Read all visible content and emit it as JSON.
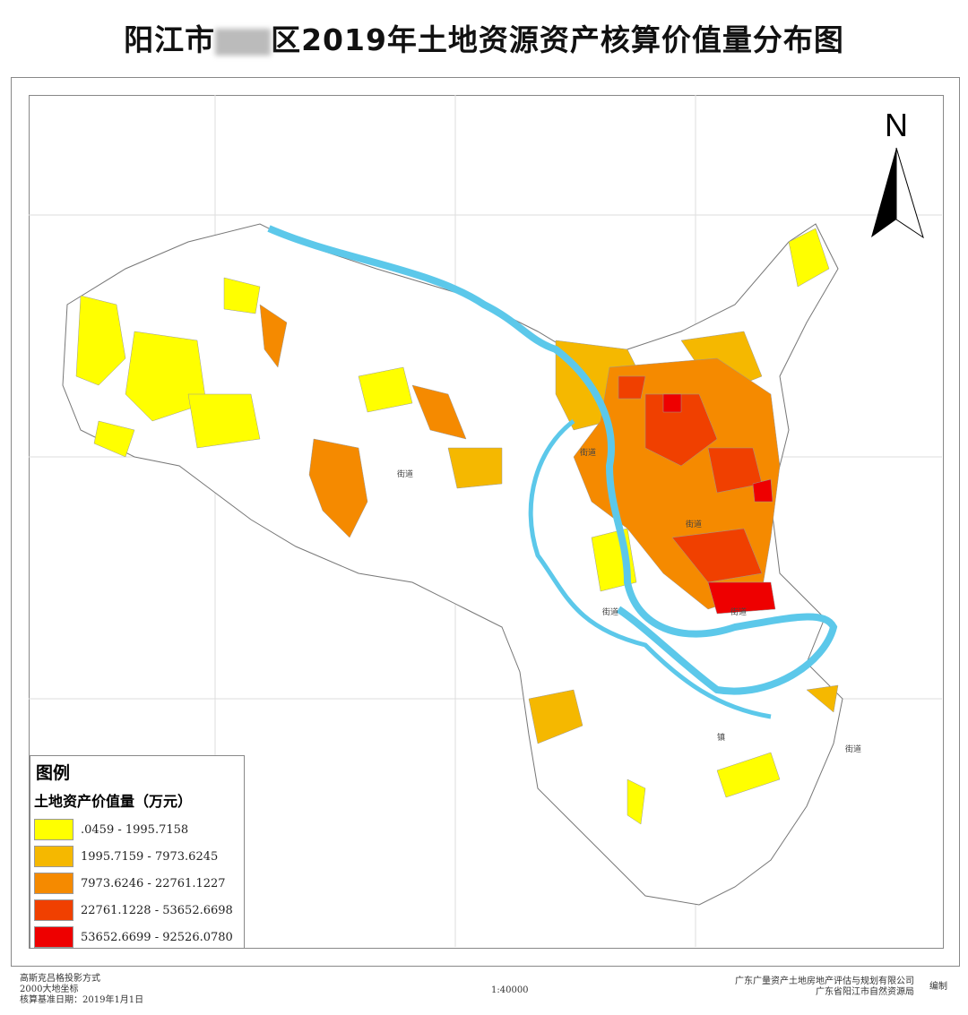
{
  "title": {
    "prefix": "阳江市",
    "suffix": "区2019年土地资源资产核算价值量分布图"
  },
  "north": "N",
  "legend": {
    "title": "图例",
    "subtitle": "土地资产价值量（万元）",
    "items": [
      {
        "label": ".0459 - 1995.7158",
        "color": "#ffff00"
      },
      {
        "label": "1995.7159 - 7973.6245",
        "color": "#f5b800"
      },
      {
        "label": "7973.6246 - 22761.1227",
        "color": "#f58a00"
      },
      {
        "label": "22761.1228 - 53652.6698",
        "color": "#f04000"
      },
      {
        "label": "53652.6699 - 92526.0780",
        "color": "#ee0000"
      }
    ]
  },
  "place_labels": [
    "街道",
    "街道",
    "街道",
    "街道",
    "街道",
    "镇",
    "街道"
  ],
  "river_color": "#5cc8ea",
  "footer": {
    "projection": "高斯克吕格投影方式",
    "coords": "2000大地坐标",
    "date": "核算基准日期：2019年1月1日",
    "scale": "1:40000",
    "org1": "广东广量资产土地房地产评估与规划有限公司",
    "org2": "广东省阳江市自然资源局",
    "made": "编制"
  }
}
